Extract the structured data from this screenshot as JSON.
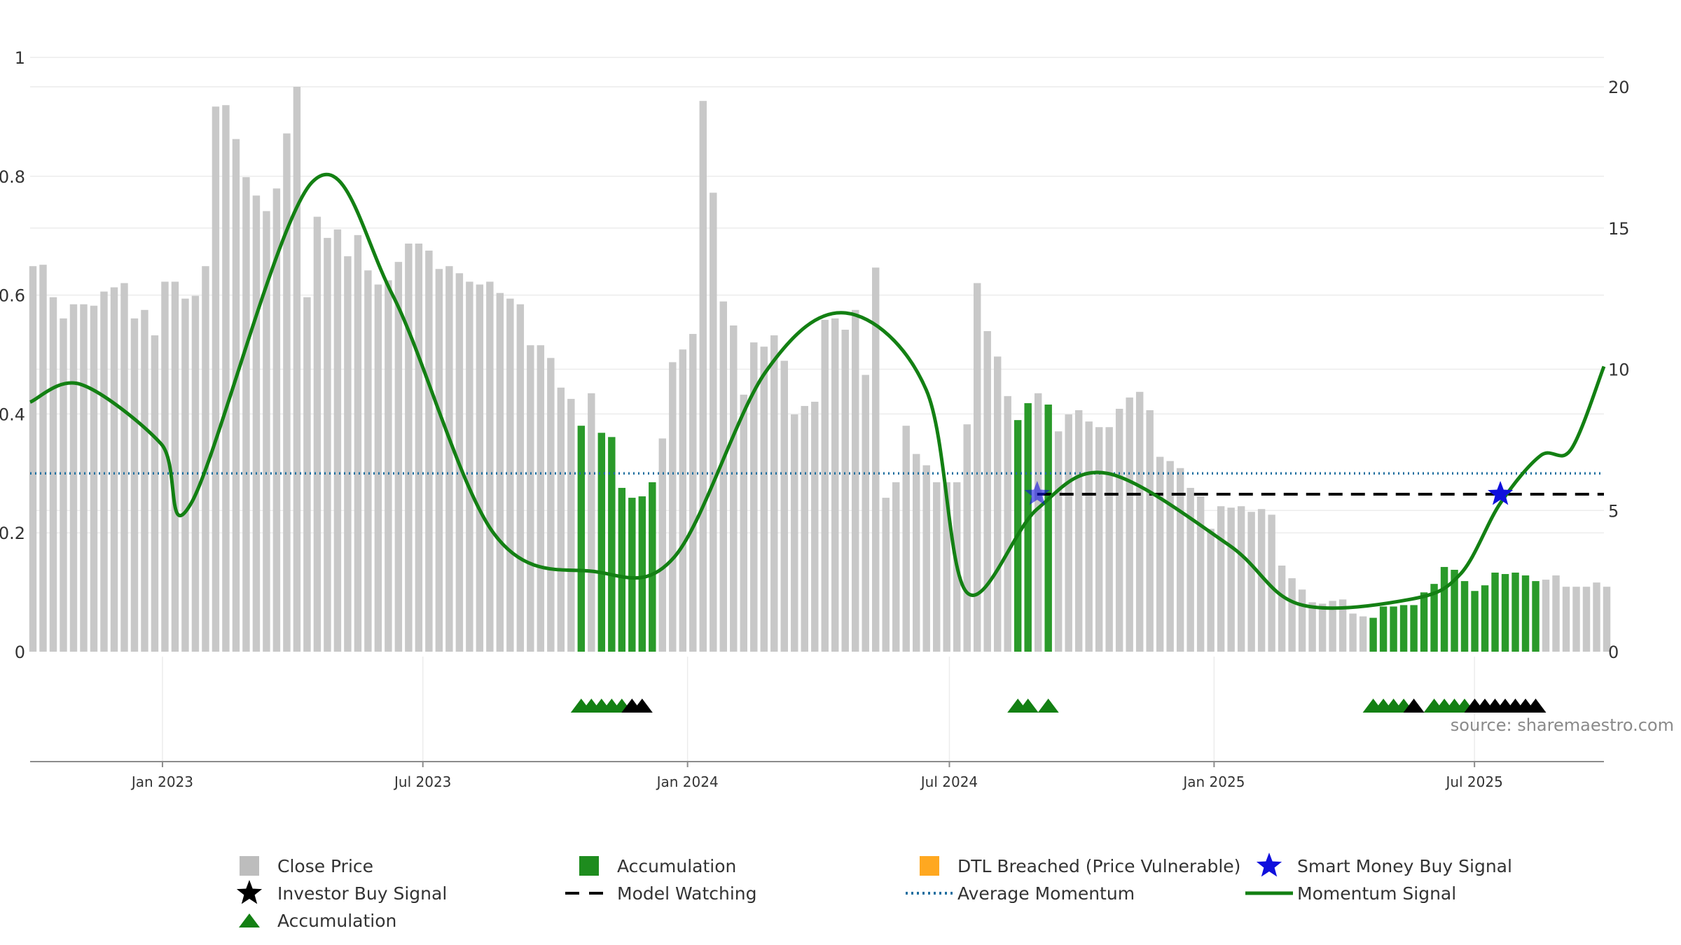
{
  "chart_data": {
    "type": "bar",
    "title": "",
    "source_label": "source: sharemaestro.com",
    "left_axis": {
      "ylim": [
        0,
        1
      ],
      "ticks": [
        "0",
        "0.2",
        "0.4",
        "0.6",
        "0.8",
        "1"
      ],
      "values": [
        0,
        0.2,
        0.4,
        0.6,
        0.8,
        1.0
      ]
    },
    "right_axis": {
      "ylim": [
        0,
        20
      ],
      "ticks": [
        "0",
        "5",
        "10",
        "15",
        "20"
      ],
      "values": [
        0,
        5,
        10,
        15,
        20
      ]
    },
    "x_axis": {
      "start": "2022-10-01",
      "end": "2025-09-29",
      "tick_labels": [
        "Jan 2023",
        "Jul 2023",
        "Jan 2024",
        "Jul 2024",
        "Jan 2025",
        "Jul 2025"
      ],
      "tick_dates": [
        "2023-01-01",
        "2023-07-01",
        "2024-01-01",
        "2024-07-01",
        "2025-01-01",
        "2025-07-01"
      ]
    },
    "grid": true,
    "close_price_weekly": [
      13.65,
      13.7,
      12.55,
      11.8,
      12.3,
      12.3,
      12.25,
      12.75,
      12.9,
      13.05,
      11.8,
      12.1,
      11.2,
      13.1,
      13.1,
      12.5,
      12.6,
      13.65,
      19.3,
      19.35,
      18.15,
      16.8,
      16.15,
      15.6,
      16.4,
      18.35,
      20.0,
      12.55,
      15.4,
      14.65,
      14.95,
      14.0,
      14.75,
      13.5,
      13.0,
      13.15,
      13.8,
      14.45,
      14.45,
      14.2,
      13.55,
      13.65,
      13.4,
      13.1,
      13.0,
      13.1,
      12.7,
      12.5,
      12.3,
      10.85,
      10.85,
      10.4,
      9.35,
      8.95,
      8.0,
      9.15,
      7.75,
      7.6,
      5.8,
      5.45,
      5.5,
      6.0,
      7.55,
      10.25,
      10.7,
      11.25,
      19.5,
      16.25,
      12.4,
      11.55,
      9.1,
      10.95,
      10.8,
      11.2,
      10.3,
      8.4,
      8.7,
      8.85,
      11.75,
      11.8,
      11.4,
      12.1,
      9.8,
      13.6,
      5.45,
      6.0,
      8.0,
      7.0,
      6.6,
      6.0,
      6.0,
      6.0,
      8.05,
      13.05,
      11.35,
      10.45,
      9.05,
      8.2,
      8.8,
      9.15,
      8.75,
      7.8,
      8.4,
      8.55,
      8.15,
      7.95,
      7.95,
      8.6,
      9.0,
      9.2,
      8.55,
      6.9,
      6.75,
      6.5,
      5.8,
      5.5,
      4.35,
      5.15,
      5.1,
      5.15,
      4.95,
      5.05,
      4.85,
      3.05,
      2.6,
      2.2,
      1.75,
      1.7,
      1.8,
      1.85,
      1.35,
      1.25,
      1.2,
      1.6,
      1.6,
      1.65,
      1.65,
      2.1,
      2.4,
      3.0,
      2.9,
      2.5,
      2.15,
      2.35,
      2.8,
      2.75,
      2.8,
      2.7,
      2.5,
      2.55,
      2.7,
      2.3,
      2.3,
      2.3,
      2.45,
      2.3
    ],
    "accumulation_bar_weeks": [
      54,
      56,
      57,
      58,
      59,
      60,
      61,
      97,
      98,
      100,
      132,
      133,
      134,
      135,
      136,
      137,
      138,
      139,
      140,
      141,
      142,
      143,
      144,
      145,
      146,
      147,
      148
    ],
    "momentum_signal": {
      "x": [
        "2022-10-01",
        "2022-11-05",
        "2022-12-31",
        "2023-01-21",
        "2023-04-15",
        "2023-06-10",
        "2023-08-19",
        "2023-10-28",
        "2023-12-23",
        "2024-02-24",
        "2024-04-20",
        "2024-06-15",
        "2024-07-13",
        "2024-08-31",
        "2024-10-19",
        "2025-01-11",
        "2025-03-01",
        "2025-05-17",
        "2025-06-21",
        "2025-07-19",
        "2025-08-16",
        "2025-09-06",
        "2025-09-29"
      ],
      "y": [
        0.42,
        0.45,
        0.35,
        0.25,
        0.79,
        0.6,
        0.2,
        0.135,
        0.16,
        0.47,
        0.57,
        0.44,
        0.1,
        0.24,
        0.3,
        0.18,
        0.08,
        0.088,
        0.13,
        0.25,
        0.33,
        0.34,
        0.48
      ]
    },
    "average_momentum": 0.3,
    "model_watching": {
      "y": 0.265,
      "start": "2024-08-31",
      "end": "2025-09-29"
    },
    "smart_money_buy_signals": [
      {
        "date": "2024-08-31",
        "y": 0.265
      },
      {
        "date": "2025-07-19",
        "y": 0.265
      }
    ],
    "accumulation_marker_weeks": [
      54,
      55,
      56,
      57,
      58,
      97,
      98,
      100,
      132,
      133,
      134,
      135,
      138,
      139,
      140,
      141
    ],
    "investor_buy_signal_weeks": [
      59,
      60,
      136,
      142,
      143,
      144,
      145,
      146,
      147,
      148
    ],
    "colors": {
      "close_price": "#c8c8c8",
      "accumulation": "#2a9a2a",
      "dtl_breached": "#ffa820",
      "smart_money": "#1010dd",
      "investor_buy": "#000000",
      "accumulation_marker": "#138013",
      "model_watching": "#000000",
      "average_momentum": "#1f6fa0",
      "momentum_signal": "#138013"
    },
    "legend": {
      "placement": "bottom",
      "entries": [
        {
          "label": "Close Price",
          "marker": "square",
          "color": "#bdbdbd"
        },
        {
          "label": "Accumulation",
          "marker": "square",
          "color": "#1e8c1e"
        },
        {
          "label": "DTL Breached (Price Vulnerable)",
          "marker": "square",
          "color": "#ffa820"
        },
        {
          "label": "Smart Money Buy Signal",
          "marker": "star",
          "color": "#1010dd"
        },
        {
          "label": "Investor Buy Signal",
          "marker": "star",
          "color": "#000000"
        },
        {
          "label": "Model Watching",
          "marker": "dash",
          "color": "#000000"
        },
        {
          "label": "Average Momentum",
          "marker": "dot",
          "color": "#1f6fa0"
        },
        {
          "label": "Momentum Signal",
          "marker": "line",
          "color": "#138013"
        },
        {
          "label": "Accumulation",
          "marker": "triangle",
          "color": "#138013"
        }
      ]
    }
  }
}
